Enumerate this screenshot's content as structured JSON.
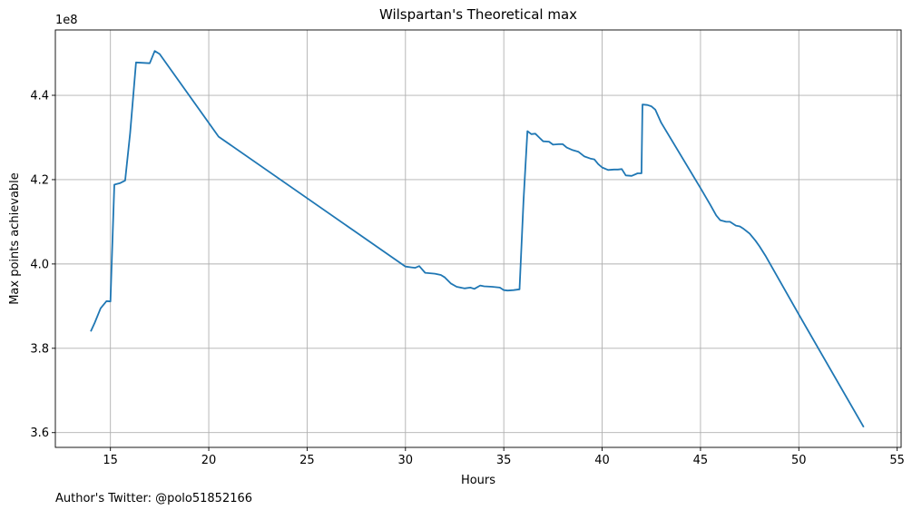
{
  "chart_data": {
    "type": "line",
    "title": "Wilspartan's Theoretical max",
    "xlabel": "Hours",
    "ylabel": "Max points achievable",
    "y_offset_label": "1e8",
    "footnote": "Author's Twitter: @polo51852166",
    "xlim": [
      12.2,
      55.2
    ],
    "ylim": [
      3.565,
      4.555
    ],
    "x_ticks": [
      15,
      20,
      25,
      30,
      35,
      40,
      45,
      50,
      55
    ],
    "x_tick_labels": [
      "15",
      "20",
      "25",
      "30",
      "35",
      "40",
      "45",
      "50",
      "55"
    ],
    "y_ticks": [
      3.6,
      3.8,
      4.0,
      4.2,
      4.4
    ],
    "y_tick_labels": [
      "3.6",
      "3.8",
      "4.0",
      "4.2",
      "4.4"
    ],
    "grid": true,
    "line_color": "#1f77b4",
    "series": [
      {
        "x": [
          14.0,
          14.2,
          14.5,
          14.8,
          15.0,
          15.2,
          15.5,
          15.75,
          16.0,
          16.3,
          16.6,
          17.0,
          17.25,
          17.5,
          20.5,
          30.0,
          30.3,
          30.5,
          30.7,
          31.0,
          31.5,
          31.8,
          32.0,
          32.3,
          32.6,
          33.0,
          33.3,
          33.5,
          33.8,
          34.0,
          34.4,
          34.8,
          35.0,
          35.2,
          35.5,
          35.8,
          36.0,
          36.2,
          36.4,
          36.6,
          36.8,
          37.0,
          37.3,
          37.5,
          37.8,
          38.0,
          38.2,
          38.5,
          38.8,
          39.1,
          39.4,
          39.6,
          39.8,
          40.0,
          40.3,
          40.6,
          40.8,
          41.0,
          41.2,
          41.5,
          41.8,
          42.0,
          42.05,
          42.3,
          42.5,
          42.7,
          43.0,
          45.0,
          45.5,
          45.8,
          46.0,
          46.3,
          46.5,
          46.8,
          47.0,
          47.2,
          47.5,
          47.8,
          48.0,
          48.3,
          50.0,
          53.3
        ],
        "y": [
          3.84,
          3.86,
          3.895,
          3.912,
          3.911,
          4.188,
          4.192,
          4.198,
          4.31,
          4.478,
          4.477,
          4.476,
          4.505,
          4.498,
          4.302,
          3.994,
          3.992,
          3.991,
          3.995,
          3.979,
          3.977,
          3.974,
          3.968,
          3.954,
          3.946,
          3.942,
          3.944,
          3.941,
          3.949,
          3.947,
          3.946,
          3.944,
          3.938,
          3.937,
          3.938,
          3.94,
          4.15,
          4.315,
          4.308,
          4.309,
          4.3,
          4.291,
          4.29,
          4.283,
          4.284,
          4.284,
          4.276,
          4.27,
          4.266,
          4.255,
          4.25,
          4.248,
          4.237,
          4.229,
          4.223,
          4.224,
          4.224,
          4.225,
          4.21,
          4.209,
          4.215,
          4.215,
          4.378,
          4.377,
          4.374,
          4.366,
          4.335,
          4.18,
          4.14,
          4.115,
          4.104,
          4.1,
          4.1,
          4.091,
          4.089,
          4.083,
          4.072,
          4.055,
          4.042,
          4.02,
          3.88,
          3.613
        ]
      }
    ]
  }
}
